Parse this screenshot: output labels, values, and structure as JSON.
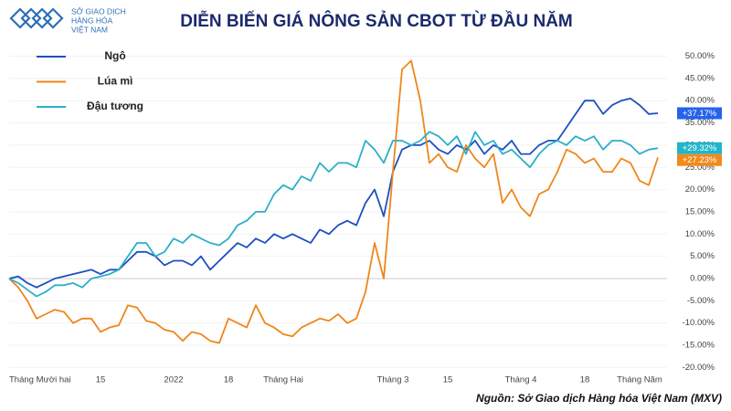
{
  "brand": [
    "SỞ GIAO DỊCH",
    "HÀNG HÓA",
    "VIỆT NAM"
  ],
  "source": "Nguồn: Sở Giao dịch Hàng hóa Việt Nam (MXV)",
  "chart_data": {
    "type": "line",
    "title": "DIỄN BIẾN GIÁ NÔNG SẢN CBOT TỪ ĐẦU NĂM",
    "categories": [
      "Tháng Mười hai",
      null,
      null,
      null,
      null,
      null,
      null,
      null,
      null,
      null,
      "15",
      null,
      null,
      null,
      null,
      null,
      null,
      null,
      "2022",
      null,
      null,
      null,
      null,
      null,
      "18",
      null,
      null,
      null,
      null,
      null,
      "Tháng Hai",
      null,
      null,
      null,
      null,
      null,
      null,
      null,
      null,
      null,
      null,
      null,
      "Tháng 3",
      null,
      null,
      null,
      null,
      null,
      "15",
      null,
      null,
      null,
      null,
      null,
      null,
      null,
      "Tháng 4",
      null,
      null,
      null,
      null,
      null,
      null,
      "18",
      null,
      null,
      null,
      null,
      null,
      "Tháng Năm",
      null,
      null
    ],
    "series": [
      {
        "name": "Ngô",
        "color": "#1f4fbf",
        "label_color": "#2563eb",
        "values": [
          0,
          0.5,
          -1,
          -2,
          -1,
          0,
          0.5,
          1,
          1.5,
          2,
          1,
          2,
          2,
          4,
          6,
          6,
          5,
          3,
          4,
          4,
          3,
          5,
          2,
          4,
          6,
          8,
          7,
          9,
          8,
          10,
          9,
          10,
          9,
          8,
          11,
          10,
          12,
          13,
          12,
          17,
          20,
          14,
          24,
          29,
          30,
          30,
          31,
          29,
          28,
          30,
          29,
          31,
          28,
          30,
          29,
          31,
          28,
          28,
          30,
          31,
          31,
          34,
          37,
          40,
          40,
          37,
          39,
          40,
          40.5,
          39,
          37,
          37.17
        ],
        "value_labels": [
          null,
          null,
          null,
          null,
          null,
          null,
          null,
          null,
          null,
          null,
          null,
          null,
          null,
          null,
          null,
          null,
          null,
          null,
          null,
          null,
          null,
          null,
          null,
          null,
          null,
          null,
          null,
          null,
          null,
          null,
          null,
          null,
          null,
          null,
          null,
          null,
          null,
          null,
          null,
          null,
          null,
          null,
          null,
          null,
          null,
          null,
          null,
          null,
          null,
          null,
          null,
          null,
          null,
          null,
          null,
          null,
          null,
          null,
          null,
          null,
          null,
          null,
          null,
          null,
          null,
          null,
          null,
          null,
          null,
          null,
          null,
          "+37.17%"
        ]
      },
      {
        "name": "Lúa mì",
        "color": "#f0861a",
        "label_color": "#f08a1c",
        "values": [
          0,
          -2,
          -5,
          -9,
          -8,
          -7,
          -7.5,
          -10,
          -9,
          -9,
          -12,
          -11,
          -10.5,
          -6,
          -6.5,
          -9.5,
          -10,
          -11.5,
          -12,
          -14,
          -12,
          -12.5,
          -14,
          -14.5,
          -9,
          -10,
          -11,
          -6,
          -10,
          -11,
          -12.5,
          -13,
          -11,
          -10,
          -9,
          -9.5,
          -8,
          -10,
          -9,
          -3,
          8,
          0,
          24,
          47,
          49,
          40,
          26,
          28,
          25,
          24,
          30,
          27,
          25,
          28,
          17,
          20,
          16,
          14,
          19,
          20,
          24,
          29,
          28,
          26,
          27,
          24,
          24,
          27,
          26,
          22,
          21,
          27.23
        ],
        "value_labels": [
          null,
          null,
          null,
          null,
          null,
          null,
          null,
          null,
          null,
          null,
          null,
          null,
          null,
          null,
          null,
          null,
          null,
          null,
          null,
          null,
          null,
          null,
          null,
          null,
          null,
          null,
          null,
          null,
          null,
          null,
          null,
          null,
          null,
          null,
          null,
          null,
          null,
          null,
          null,
          null,
          null,
          null,
          null,
          null,
          null,
          null,
          null,
          null,
          null,
          null,
          null,
          null,
          null,
          null,
          null,
          null,
          null,
          null,
          null,
          null,
          null,
          null,
          null,
          null,
          null,
          null,
          null,
          null,
          null,
          null,
          null,
          "+27.23%"
        ]
      },
      {
        "name": "Đậu tương",
        "color": "#2ab0c8",
        "label_color": "#22b5cc",
        "values": [
          0,
          -1,
          -2.5,
          -4,
          -3,
          -1.5,
          -1.5,
          -1,
          -2,
          0,
          0.5,
          1,
          2,
          5,
          8,
          8,
          5,
          6,
          9,
          8,
          10,
          9,
          8,
          7.5,
          9,
          12,
          13,
          15,
          15,
          19,
          21,
          20,
          23,
          22,
          26,
          24,
          26,
          26,
          25,
          31,
          29,
          26,
          31,
          31,
          30,
          31,
          33,
          32,
          30,
          32,
          28,
          33,
          30,
          31,
          28,
          29,
          27,
          25,
          28,
          30,
          31,
          30,
          32,
          31,
          32,
          29,
          31,
          31,
          30,
          28,
          29,
          29.32
        ],
        "value_labels": [
          null,
          null,
          null,
          null,
          null,
          null,
          null,
          null,
          null,
          null,
          null,
          null,
          null,
          null,
          null,
          null,
          null,
          null,
          null,
          null,
          null,
          null,
          null,
          null,
          null,
          null,
          null,
          null,
          null,
          null,
          null,
          null,
          null,
          null,
          null,
          null,
          null,
          null,
          null,
          null,
          null,
          null,
          null,
          null,
          null,
          null,
          null,
          null,
          null,
          null,
          null,
          null,
          null,
          null,
          null,
          null,
          null,
          null,
          null,
          null,
          null,
          null,
          null,
          null,
          null,
          null,
          null,
          null,
          null,
          null,
          null,
          "+29.32%"
        ]
      }
    ],
    "ylim": [
      -20,
      50
    ],
    "yticks": [
      {
        "value": 50,
        "label": "50.00%"
      },
      {
        "value": 45,
        "label": "45.00%"
      },
      {
        "value": 40,
        "label": "40.00%"
      },
      {
        "value": 35,
        "label": "35.00%"
      },
      {
        "value": 30,
        "label": "30.00%"
      },
      {
        "value": 25,
        "label": "25.00%"
      },
      {
        "value": 20,
        "label": "20.00%"
      },
      {
        "value": 15,
        "label": "15.00%"
      },
      {
        "value": 10,
        "label": "10.00%"
      },
      {
        "value": 5,
        "label": "5.00%"
      },
      {
        "value": 0,
        "label": "0.00%"
      },
      {
        "value": -5,
        "label": "-5.00%"
      },
      {
        "value": -10,
        "label": "-10.00%"
      },
      {
        "value": -15,
        "label": "-15.00%"
      },
      {
        "value": -20,
        "label": "-20.00%"
      }
    ],
    "grid": true,
    "legend": "top-left"
  }
}
